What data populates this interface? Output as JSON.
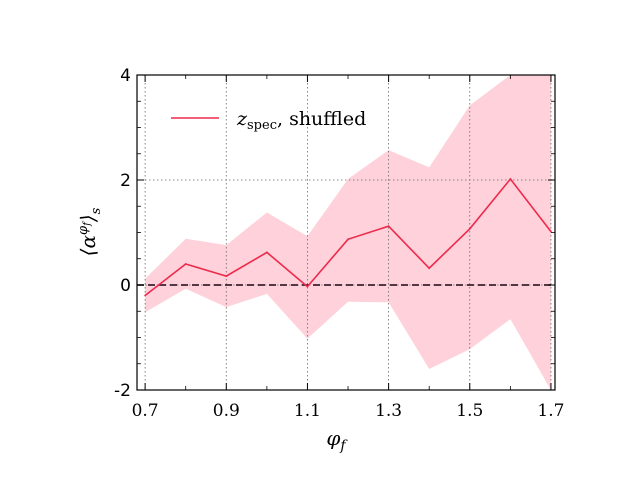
{
  "chart_data": {
    "type": "line",
    "xlabel": "φ_f",
    "ylabel": "⟨α^{φ_f}⟩_s",
    "xlim": [
      0.68,
      1.71
    ],
    "ylim": [
      -2,
      4
    ],
    "x_ticks": [
      "0.7",
      "0.9",
      "1.1",
      "1.3",
      "1.5",
      "1.7"
    ],
    "x_tick_values": [
      0.7,
      0.9,
      1.1,
      1.3,
      1.5,
      1.7
    ],
    "y_ticks": [
      "-2",
      "0",
      "2",
      "4"
    ],
    "y_tick_values": [
      -2,
      0,
      2,
      4
    ],
    "grid": true,
    "legend_position": "top-left",
    "reference_line": {
      "y": 0,
      "style": "dashed"
    },
    "series": [
      {
        "name": "z_spec, shuffled",
        "legend_main": "z",
        "legend_sub": "spec",
        "legend_rest": ", shuffled",
        "color": "#ee2a4c",
        "band_color": "#ffd1da",
        "x": [
          0.7,
          0.8,
          0.9,
          1.0,
          1.1,
          1.2,
          1.3,
          1.4,
          1.5,
          1.6,
          1.7
        ],
        "values": [
          -0.2,
          0.4,
          0.17,
          0.62,
          -0.03,
          0.87,
          1.12,
          0.32,
          1.07,
          2.02,
          1.02
        ],
        "lower": [
          -0.52,
          -0.07,
          -0.42,
          -0.17,
          -1.02,
          -0.32,
          -0.33,
          -1.6,
          -1.22,
          -0.65,
          -2.0
        ],
        "upper": [
          0.12,
          0.88,
          0.76,
          1.38,
          0.93,
          2.02,
          2.57,
          2.24,
          3.42,
          4.0,
          4.0
        ]
      }
    ]
  },
  "labels": {
    "xlabel_main": "φ",
    "xlabel_sub": "f"
  }
}
